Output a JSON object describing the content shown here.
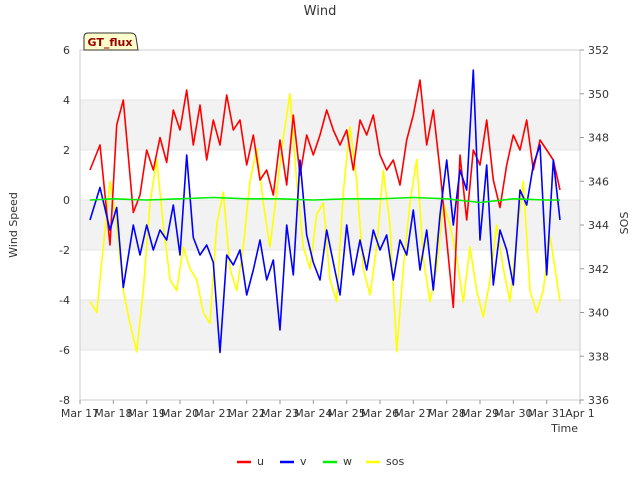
{
  "chart_data": {
    "type": "line",
    "title": "Wind",
    "xlabel": "Time",
    "ylabel": "Wind Speed",
    "y2label": "SOS",
    "ylim": [
      -8,
      6
    ],
    "y2lim": [
      336,
      352
    ],
    "yticks": [
      "6",
      "4",
      "2",
      "0",
      "-2",
      "-4",
      "-6",
      "-8"
    ],
    "y2ticks": [
      "352",
      "350",
      "348",
      "346",
      "344",
      "342",
      "340",
      "338",
      "336"
    ],
    "xlim": [
      0,
      15
    ],
    "xticks": [
      "Mar 17",
      "Mar 18",
      "Mar 19",
      "Mar 20",
      "Mar 21",
      "Mar 22",
      "Mar 23",
      "Mar 24",
      "Mar 25",
      "Mar 26",
      "Mar 27",
      "Mar 28",
      "Mar 29",
      "Mar 30",
      "Mar 31",
      "Apr 1"
    ],
    "badge": "GT_flux",
    "legend_position": "bottom-center",
    "grid": true,
    "series": [
      {
        "name": "u",
        "color": "#ff0000",
        "axis": "left",
        "x": [
          0.3,
          0.6,
          0.9,
          1.1,
          1.3,
          1.6,
          1.8,
          2.0,
          2.2,
          2.4,
          2.6,
          2.8,
          3.0,
          3.2,
          3.4,
          3.6,
          3.8,
          4.0,
          4.2,
          4.4,
          4.6,
          4.8,
          5.0,
          5.2,
          5.4,
          5.6,
          5.8,
          6.0,
          6.2,
          6.4,
          6.6,
          6.8,
          7.0,
          7.2,
          7.4,
          7.6,
          7.8,
          8.0,
          8.2,
          8.4,
          8.6,
          8.8,
          9.0,
          9.2,
          9.4,
          9.6,
          9.8,
          10.0,
          10.2,
          10.4,
          10.6,
          10.8,
          11.0,
          11.2,
          11.4,
          11.6,
          11.8,
          12.0,
          12.2,
          12.4,
          12.6,
          12.8,
          13.0,
          13.2,
          13.4,
          13.6,
          13.8,
          14.0,
          14.2,
          14.4
        ],
        "values": [
          1.2,
          2.2,
          -1.8,
          3.0,
          4.0,
          -0.5,
          0.2,
          2.0,
          1.2,
          2.5,
          1.5,
          3.6,
          2.8,
          4.4,
          2.2,
          3.8,
          1.6,
          3.2,
          2.2,
          4.2,
          2.8,
          3.2,
          1.4,
          2.6,
          0.8,
          1.2,
          0.2,
          2.4,
          0.6,
          3.4,
          1.0,
          2.6,
          1.8,
          2.6,
          3.6,
          2.8,
          2.2,
          2.8,
          1.2,
          3.2,
          2.6,
          3.4,
          1.8,
          1.2,
          1.6,
          0.6,
          2.4,
          3.4,
          4.8,
          2.2,
          3.6,
          1.2,
          -1.6,
          -4.3,
          1.8,
          -0.8,
          2.0,
          1.4,
          3.2,
          0.8,
          -0.3,
          1.4,
          2.6,
          2.0,
          3.2,
          1.2,
          2.4,
          2.0,
          1.6,
          0.4
        ]
      },
      {
        "name": "v",
        "color": "#0000ff",
        "axis": "left",
        "x": [
          0.3,
          0.6,
          0.9,
          1.1,
          1.3,
          1.6,
          1.8,
          2.0,
          2.2,
          2.4,
          2.6,
          2.8,
          3.0,
          3.2,
          3.4,
          3.6,
          3.8,
          4.0,
          4.2,
          4.4,
          4.6,
          4.8,
          5.0,
          5.2,
          5.4,
          5.6,
          5.8,
          6.0,
          6.2,
          6.4,
          6.6,
          6.8,
          7.0,
          7.2,
          7.4,
          7.6,
          7.8,
          8.0,
          8.2,
          8.4,
          8.6,
          8.8,
          9.0,
          9.2,
          9.4,
          9.6,
          9.8,
          10.0,
          10.2,
          10.4,
          10.6,
          10.8,
          11.0,
          11.2,
          11.4,
          11.6,
          11.8,
          12.0,
          12.2,
          12.4,
          12.6,
          12.8,
          13.0,
          13.2,
          13.4,
          13.6,
          13.8,
          14.0,
          14.2,
          14.4
        ],
        "values": [
          -0.8,
          0.5,
          -1.2,
          -0.3,
          -3.5,
          -1.0,
          -2.2,
          -1.0,
          -2.0,
          -1.2,
          -1.6,
          -0.2,
          -2.2,
          1.8,
          -1.5,
          -2.2,
          -1.8,
          -2.5,
          -6.1,
          -2.2,
          -2.6,
          -2.0,
          -3.8,
          -2.8,
          -1.6,
          -3.2,
          -2.4,
          -5.2,
          -1.0,
          -3.0,
          1.6,
          -1.4,
          -2.5,
          -3.2,
          -1.2,
          -2.5,
          -3.8,
          -1.0,
          -3.0,
          -1.6,
          -2.8,
          -1.2,
          -2.0,
          -1.4,
          -3.2,
          -1.6,
          -2.2,
          -0.4,
          -2.8,
          -1.2,
          -3.6,
          -0.6,
          1.6,
          -1.0,
          1.2,
          0.4,
          5.2,
          -1.6,
          1.4,
          -3.4,
          -1.2,
          -2.0,
          -3.4,
          0.4,
          -0.2,
          1.4,
          2.2,
          -3.0,
          1.6,
          -0.8
        ]
      },
      {
        "name": "w",
        "color": "#00ee00",
        "axis": "left",
        "x": [
          0.3,
          1.0,
          2.0,
          3.0,
          4.0,
          5.0,
          6.0,
          7.0,
          8.0,
          9.0,
          10.0,
          11.0,
          12.0,
          13.0,
          14.0,
          14.4
        ],
        "values": [
          0.0,
          0.05,
          0.0,
          0.05,
          0.1,
          0.05,
          0.05,
          0.0,
          0.05,
          0.05,
          0.1,
          0.05,
          -0.1,
          0.05,
          0.0,
          0.0
        ]
      },
      {
        "name": "sos",
        "color": "#ffff00",
        "axis": "right",
        "x": [
          0.3,
          0.5,
          0.7,
          0.9,
          1.1,
          1.3,
          1.5,
          1.7,
          1.9,
          2.1,
          2.3,
          2.5,
          2.7,
          2.9,
          3.1,
          3.3,
          3.5,
          3.7,
          3.9,
          4.1,
          4.3,
          4.5,
          4.7,
          4.9,
          5.1,
          5.3,
          5.5,
          5.7,
          5.9,
          6.1,
          6.3,
          6.5,
          6.7,
          6.9,
          7.1,
          7.3,
          7.5,
          7.7,
          7.9,
          8.1,
          8.3,
          8.5,
          8.7,
          8.9,
          9.1,
          9.3,
          9.5,
          9.7,
          9.9,
          10.1,
          10.3,
          10.5,
          10.7,
          10.9,
          11.1,
          11.3,
          11.5,
          11.7,
          11.9,
          12.1,
          12.3,
          12.5,
          12.7,
          12.9,
          13.1,
          13.3,
          13.5,
          13.7,
          13.9,
          14.1,
          14.3,
          14.4
        ],
        "values": [
          340.5,
          340.0,
          343.0,
          346.0,
          344.0,
          341.0,
          339.5,
          338.2,
          341.0,
          345.0,
          347.0,
          344.0,
          341.5,
          341.0,
          343.0,
          342.0,
          341.5,
          340.0,
          339.5,
          344.0,
          345.5,
          342.0,
          341.0,
          343.0,
          346.0,
          347.5,
          345.0,
          343.0,
          345.5,
          348.0,
          350.0,
          346.0,
          343.0,
          342.0,
          344.5,
          345.0,
          341.5,
          340.5,
          345.5,
          348.5,
          346.0,
          342.0,
          340.8,
          343.0,
          346.5,
          344.0,
          338.2,
          342.0,
          345.0,
          347.0,
          342.5,
          340.5,
          342.0,
          345.0,
          344.0,
          342.5,
          340.5,
          343.0,
          341.0,
          339.8,
          341.5,
          344.0,
          342.0,
          340.5,
          343.5,
          346.0,
          341.0,
          340.0,
          341.0,
          343.5,
          341.5,
          340.5
        ]
      }
    ]
  }
}
